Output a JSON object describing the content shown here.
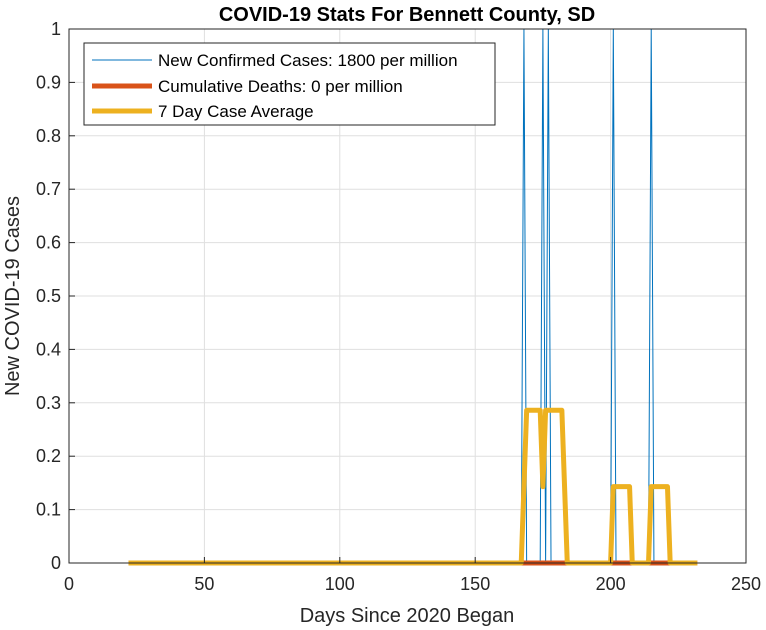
{
  "chart_data": {
    "type": "line",
    "title": "COVID-19 Stats For Bennett County, SD",
    "xlabel": "Days Since 2020 Began",
    "ylabel": "New COVID-19 Cases",
    "xlim": [
      0,
      250
    ],
    "ylim": [
      0,
      1
    ],
    "xticks": [
      0,
      50,
      100,
      150,
      200,
      250
    ],
    "yticks": [
      0,
      0.1,
      0.2,
      0.3,
      0.4,
      0.5,
      0.6,
      0.7,
      0.8,
      0.9,
      1
    ],
    "ytick_labels": [
      "0",
      "0.1",
      "0.2",
      "0.3",
      "0.4",
      "0.5",
      "0.6",
      "0.7",
      "0.8",
      "0.9",
      "1"
    ],
    "grid": true,
    "legend_position": "top-left",
    "series": [
      {
        "name": "New Confirmed Cases: 1800 per million",
        "color": "#0072BD",
        "x": [
          22,
          167,
          168,
          169,
          174,
          175,
          176,
          177,
          178,
          200,
          201,
          202,
          214,
          215,
          216,
          232
        ],
        "y": [
          0,
          0,
          1,
          0,
          0,
          1,
          0,
          1,
          0,
          0,
          1,
          0,
          0,
          1,
          0,
          0
        ]
      },
      {
        "name": "Cumulative Deaths: 0 per million",
        "color": "#D95319",
        "x": [
          22,
          232
        ],
        "y": [
          0,
          0
        ]
      },
      {
        "name": "7 Day Case Average",
        "color": "#EDB120",
        "x": [
          22,
          167,
          168,
          169,
          173,
          174,
          175,
          176,
          181,
          182,
          183,
          184,
          200,
          201,
          206,
          207,
          208,
          214,
          215,
          220,
          221,
          222,
          232
        ],
        "y": [
          0,
          0,
          0.143,
          0.286,
          0.286,
          0.286,
          0.143,
          0.286,
          0.286,
          0.286,
          0.143,
          0,
          0,
          0.143,
          0.143,
          0.143,
          0,
          0,
          0.143,
          0.143,
          0.143,
          0,
          0
        ]
      }
    ]
  }
}
